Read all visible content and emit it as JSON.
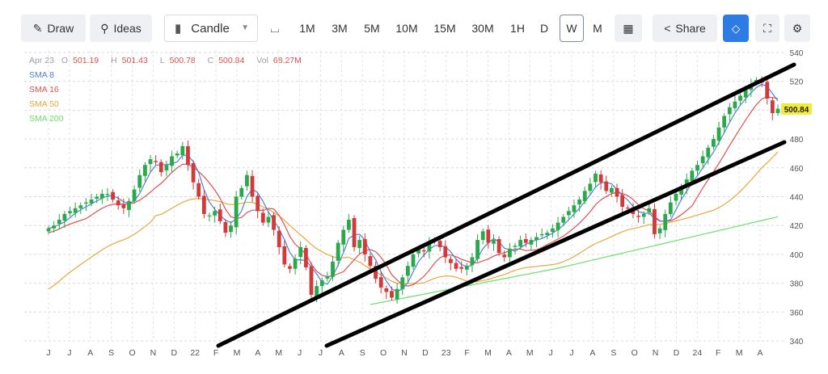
{
  "toolbar": {
    "draw_label": "Draw",
    "ideas_label": "Ideas",
    "chart_type_label": "Candle",
    "ranges": [
      "1M",
      "3M",
      "5M",
      "10M",
      "15M",
      "30M",
      "1H",
      "D",
      "W",
      "M"
    ],
    "active_range": "W",
    "share_label": "Share"
  },
  "legend": {
    "date": "Apr 23",
    "open_label": "O",
    "open": "501.19",
    "high_label": "H",
    "high": "501.43",
    "low_label": "L",
    "low": "500.78",
    "close_label": "C",
    "close": "500.84",
    "volume_label": "Vol",
    "volume": "68.27M",
    "sma": [
      {
        "label": "SMA 8",
        "color": "#4f7fe0"
      },
      {
        "label": "SMA 16",
        "color": "#e05050"
      },
      {
        "label": "SMA 50",
        "color": "#e7a93c"
      },
      {
        "label": "SMA 200",
        "color": "#6be06b"
      }
    ]
  },
  "chart_data": {
    "type": "candlestick",
    "interval": "weekly",
    "ylim": [
      335,
      545
    ],
    "yticks": [
      340,
      360,
      380,
      400,
      420,
      440,
      460,
      480,
      500,
      520,
      540
    ],
    "xticks": [
      "J",
      "J",
      "A",
      "S",
      "O",
      "N",
      "D",
      "22",
      "F",
      "M",
      "A",
      "M",
      "J",
      "J",
      "A",
      "S",
      "O",
      "N",
      "D",
      "23",
      "F",
      "M",
      "A",
      "M",
      "J",
      "J",
      "A",
      "S",
      "O",
      "N",
      "D",
      "24",
      "F",
      "M",
      "A"
    ],
    "last_price_label": "500.84",
    "up_color": "#2aa84a",
    "down_color": "#d03a3a",
    "closes": [
      418,
      420,
      424,
      428,
      430,
      432,
      434,
      436,
      438,
      440,
      442,
      442,
      438,
      434,
      432,
      437,
      445,
      455,
      462,
      466,
      464,
      457,
      462,
      468,
      470,
      475,
      462,
      450,
      440,
      428,
      427,
      430,
      423,
      415,
      420,
      440,
      446,
      455,
      440,
      430,
      422,
      426,
      417,
      405,
      393,
      390,
      397,
      405,
      391,
      372,
      378,
      382,
      385,
      395,
      408,
      417,
      424,
      405,
      410,
      400,
      392,
      383,
      377,
      374,
      370,
      376,
      384,
      392,
      400,
      404,
      402,
      408,
      410,
      405,
      398,
      394,
      390,
      390,
      392,
      398,
      410,
      416,
      408,
      410,
      401,
      398,
      404,
      406,
      410,
      408,
      410,
      412,
      414,
      415,
      418,
      422,
      426,
      430,
      434,
      438,
      444,
      449,
      456,
      450,
      444,
      446,
      440,
      433,
      432,
      428,
      426,
      428,
      432,
      414,
      418,
      428,
      436,
      442,
      446,
      452,
      458,
      462,
      468,
      474,
      480,
      488,
      496,
      502,
      506,
      510,
      514,
      518,
      521,
      519,
      508,
      498,
      501
    ],
    "channel_lines": [
      {
        "from": [
          "Feb 2022",
          339
        ],
        "to": [
          "Apr 2024",
          532
        ]
      },
      {
        "from": [
          "Jul 2022",
          337
        ],
        "to": [
          "Apr 2024",
          478
        ]
      }
    ]
  },
  "icons": {
    "draw": "pencil-icon",
    "ideas": "lightbulb-icon",
    "candle": "candle-icon",
    "line": "line-icon",
    "calendar": "calendar-icon",
    "share": "share-icon",
    "diamond": "diamond-icon",
    "fullscreen": "fullscreen-icon",
    "settings": "gear-icon"
  }
}
